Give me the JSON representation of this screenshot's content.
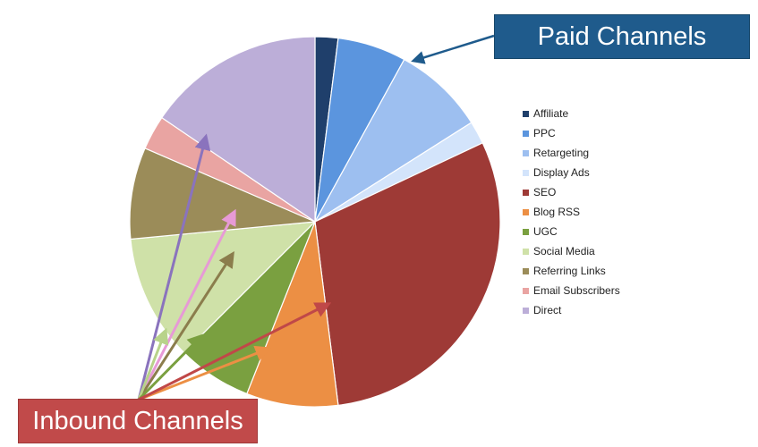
{
  "chart_data": {
    "type": "pie",
    "title": "",
    "start": "12 o'clock",
    "direction": "clockwise",
    "slices": [
      {
        "label": "Affiliate",
        "value": 2,
        "color": "#1f3f6b"
      },
      {
        "label": "PPC",
        "value": 6,
        "color": "#5b95de"
      },
      {
        "label": "Retargeting",
        "value": 8,
        "color": "#9dbff0"
      },
      {
        "label": "Display Ads",
        "value": 2,
        "color": "#d3e4fb"
      },
      {
        "label": "SEO",
        "value": 30,
        "color": "#9e3a36"
      },
      {
        "label": "Blog RSS",
        "value": 8,
        "color": "#ec8f44"
      },
      {
        "label": "UGC",
        "value": 6.5,
        "color": "#7aa040"
      },
      {
        "label": "Social Media",
        "value": 11,
        "color": "#cfe1a8"
      },
      {
        "label": "Referring Links",
        "value": 8,
        "color": "#9b8c59"
      },
      {
        "label": "Email Subscribers",
        "value": 3,
        "color": "#e9a4a2"
      },
      {
        "label": "Direct",
        "value": 15.5,
        "color": "#bcaed8"
      }
    ],
    "legend_position": "right"
  },
  "callouts": {
    "paid": {
      "text": "Paid Channels",
      "color": "#1f5b8c"
    },
    "inbound": {
      "text": "Inbound Channels",
      "color": "#c14a4a"
    }
  }
}
